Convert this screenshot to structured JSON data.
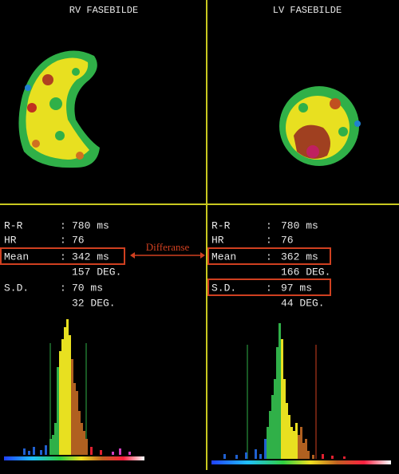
{
  "header": {
    "left_title": "RV FASEBILDE",
    "right_title": "LV FASEBILDE"
  },
  "separator": ":",
  "annotation": "Differanse",
  "panels": [
    {
      "items": [
        {
          "label": "R-R",
          "value": "780 ms"
        },
        {
          "label": "HR",
          "value": "76"
        },
        {
          "label": "Mean",
          "value": "342 ms",
          "extra": "157 DEG."
        },
        {
          "label": "S.D.",
          "value": "70 ms",
          "extra": "32 DEG."
        }
      ],
      "histogram": [
        0,
        0,
        0,
        0,
        0,
        0,
        0,
        0,
        8,
        0,
        5,
        0,
        10,
        0,
        0,
        6,
        0,
        12,
        0,
        20,
        25,
        40,
        110,
        130,
        145,
        160,
        170,
        150,
        120,
        90,
        80,
        55,
        40,
        30,
        20,
        0,
        10,
        0,
        0,
        0,
        6,
        0,
        0,
        0,
        0,
        4,
        0,
        0,
        8,
        0,
        0,
        0,
        4,
        0,
        0,
        0,
        0,
        0
      ]
    },
    {
      "items": [
        {
          "label": "R-R",
          "value": "780 ms"
        },
        {
          "label": "HR",
          "value": "76"
        },
        {
          "label": "Mean",
          "value": "362 ms",
          "extra": "166 DEG."
        },
        {
          "label": "S.D.",
          "value": "97 ms",
          "extra": "44 DEG."
        }
      ],
      "histogram": [
        0,
        0,
        0,
        0,
        0,
        6,
        0,
        0,
        0,
        0,
        5,
        0,
        0,
        0,
        8,
        0,
        0,
        0,
        12,
        0,
        6,
        0,
        25,
        40,
        60,
        80,
        100,
        140,
        170,
        150,
        100,
        70,
        55,
        40,
        35,
        45,
        30,
        40,
        20,
        25,
        10,
        0,
        5,
        0,
        0,
        0,
        6,
        0,
        0,
        0,
        4,
        0,
        0,
        0,
        0,
        3,
        0,
        0,
        0,
        0,
        0,
        0,
        0,
        0,
        0,
        0,
        0,
        0,
        0,
        0,
        0,
        0,
        0,
        0,
        0
      ]
    }
  ]
}
